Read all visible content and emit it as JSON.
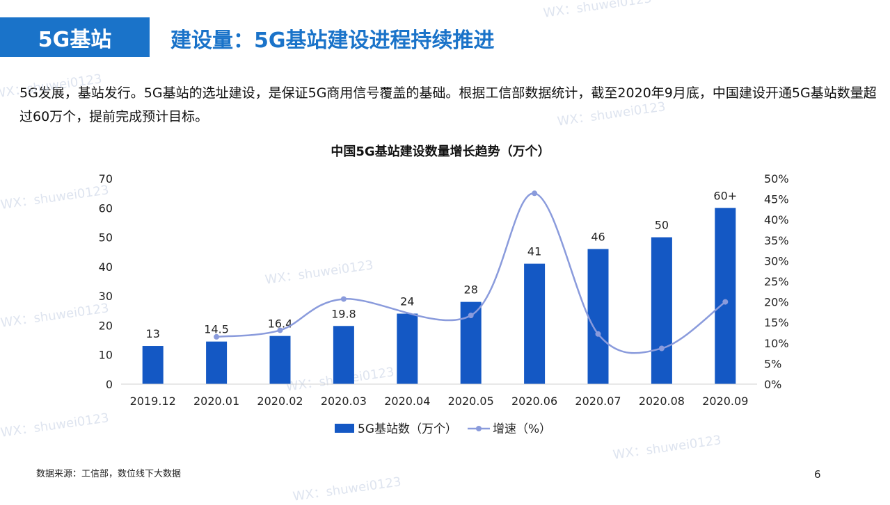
{
  "header": {
    "tag": "5G基站",
    "title": "建设量：5G基站建设进程持续推进"
  },
  "description": "5G发展，基站发行。5G基站的选址建设，是保证5G商用信号覆盖的基础。根据工信部数据统计，截至2020年9月底，中国建设开通5G基站数量超过60万个，提前完成预计目标。",
  "watermark": "WX：shuwei0123",
  "footer": {
    "source": "数据来源：工信部，数位线下大数据",
    "page": "6"
  },
  "colors": {
    "accent": "#1a73c9",
    "bar": "#1458c4",
    "line": "#8a9bdc"
  },
  "chart_data": {
    "type": "bar",
    "title": "中国5G基站建设数量增长趋势（万个）",
    "categories": [
      "2019.12",
      "2020.01",
      "2020.02",
      "2020.03",
      "2020.04",
      "2020.05",
      "2020.06",
      "2020.07",
      "2020.08",
      "2020.09"
    ],
    "series": [
      {
        "name": "5G基站数（万个）",
        "type": "bar",
        "axis": "left",
        "values": [
          13,
          14.5,
          16.4,
          19.8,
          24,
          28,
          41,
          46,
          50,
          60
        ],
        "labels": [
          "13",
          "14.5",
          "16.4",
          "19.8",
          "24",
          "28",
          "41",
          "46",
          "50",
          "60+"
        ]
      },
      {
        "name": "增速（%）",
        "type": "line",
        "axis": "right",
        "values": [
          null,
          11.5,
          13.1,
          20.7,
          null,
          16.7,
          46.4,
          12.2,
          8.7,
          20.0
        ]
      }
    ],
    "y_left": {
      "min": 0,
      "max": 70,
      "ticks": [
        "0",
        "10",
        "20",
        "30",
        "40",
        "50",
        "60",
        "70"
      ]
    },
    "y_right": {
      "min": 0,
      "max": 50,
      "ticks": [
        "0%",
        "5%",
        "10%",
        "15%",
        "20%",
        "25%",
        "30%",
        "35%",
        "40%",
        "45%",
        "50%"
      ]
    },
    "grid": false,
    "legend": "bottom"
  }
}
